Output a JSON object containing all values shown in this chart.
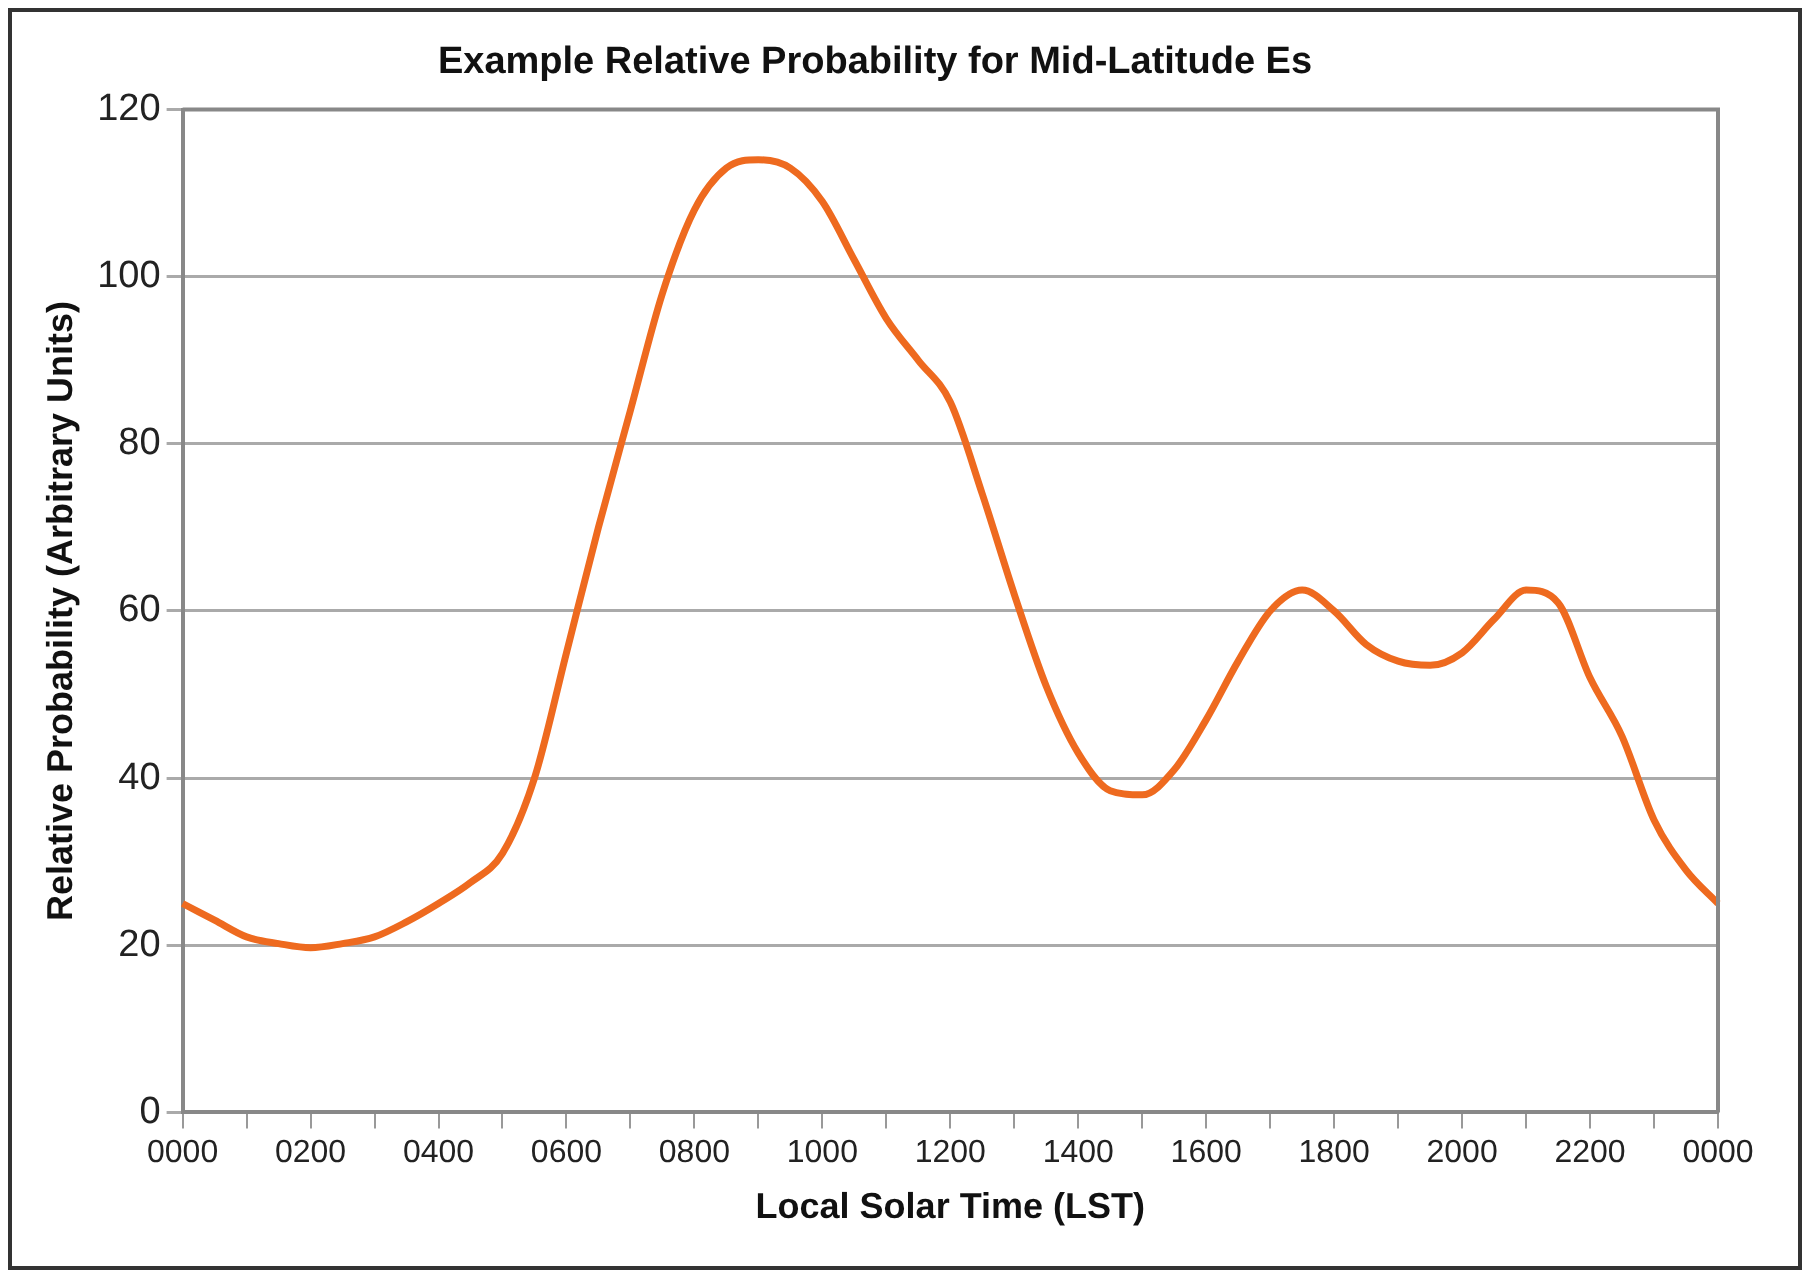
{
  "chart_data": {
    "type": "line",
    "title": "Example Relative Probability for Mid-Latitude Es",
    "xlabel": "Local Solar Time (LST)",
    "ylabel": "Relative Probability (Arbitrary Units)",
    "categories": [
      "0000",
      null,
      null,
      null,
      "0200",
      null,
      null,
      null,
      "0400",
      null,
      null,
      null,
      "0600",
      null,
      null,
      null,
      "0800",
      null,
      null,
      null,
      "1000",
      null,
      null,
      null,
      "1200",
      null,
      null,
      null,
      "1400",
      null,
      null,
      null,
      "1600",
      null,
      null,
      null,
      "1800",
      null,
      null,
      null,
      "2000",
      null,
      null,
      null,
      "2200",
      null,
      null,
      null,
      "0000"
    ],
    "series": [
      {
        "color": "#ee6a1f",
        "values": [
          25,
          23,
          21,
          20.2,
          19.7,
          20.2,
          21,
          22.8,
          25,
          27.5,
          31,
          40,
          55,
          70,
          84,
          98,
          108,
          113,
          114,
          113,
          109,
          102,
          95,
          90,
          85,
          74,
          62,
          51,
          43,
          38.5,
          38,
          41,
          47,
          54,
          60,
          62.5,
          60,
          56,
          54,
          53.5,
          55,
          59,
          62.5,
          61,
          52,
          45,
          35,
          29,
          25
        ]
      }
    ],
    "ylim": [
      0,
      120
    ],
    "yticks": [
      0,
      20,
      40,
      60,
      80,
      100,
      120
    ],
    "grid": "y",
    "legend": false,
    "marker": "none",
    "line_style": "solid"
  }
}
